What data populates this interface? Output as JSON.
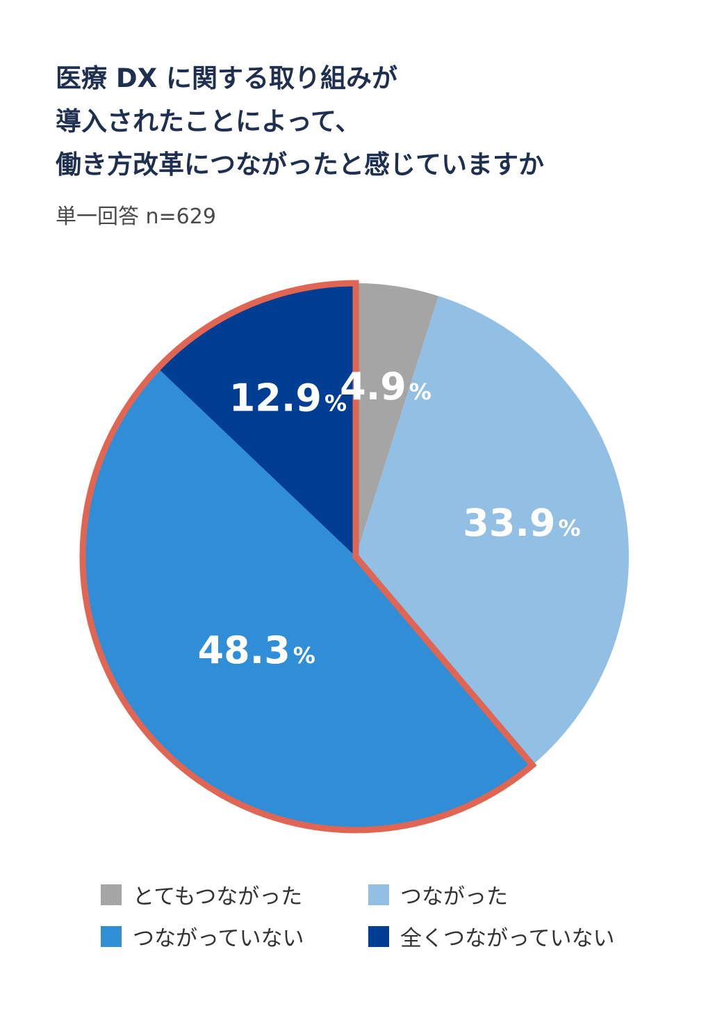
{
  "title_lines": [
    "医療 DX に関する取り組みが",
    "導入されたことによって、",
    "働き方改革につながったと感じていますか"
  ],
  "subtitle": "単一回答 n=629",
  "chart_data": {
    "type": "pie",
    "title": "医療 DX に関する取り組みが導入されたことによって、働き方改革につながったと感じていますか",
    "subtitle": "単一回答 n=629",
    "unit": "%",
    "legend_position": "bottom",
    "highlight_color": "#e06553",
    "highlighted": [
      "つながっていない",
      "全くつながっていない"
    ],
    "slices": [
      {
        "label": "とてもつながった",
        "value": 4.9,
        "display": "4.9",
        "color": "#a5a5a5"
      },
      {
        "label": "つながった",
        "value": 33.9,
        "display": "33.9",
        "color": "#92bfe4"
      },
      {
        "label": "つながっていない",
        "value": 48.3,
        "display": "48.3",
        "color": "#2f8ed6"
      },
      {
        "label": "全くつながっていない",
        "value": 12.9,
        "display": "12.9",
        "color": "#003e93"
      }
    ]
  }
}
